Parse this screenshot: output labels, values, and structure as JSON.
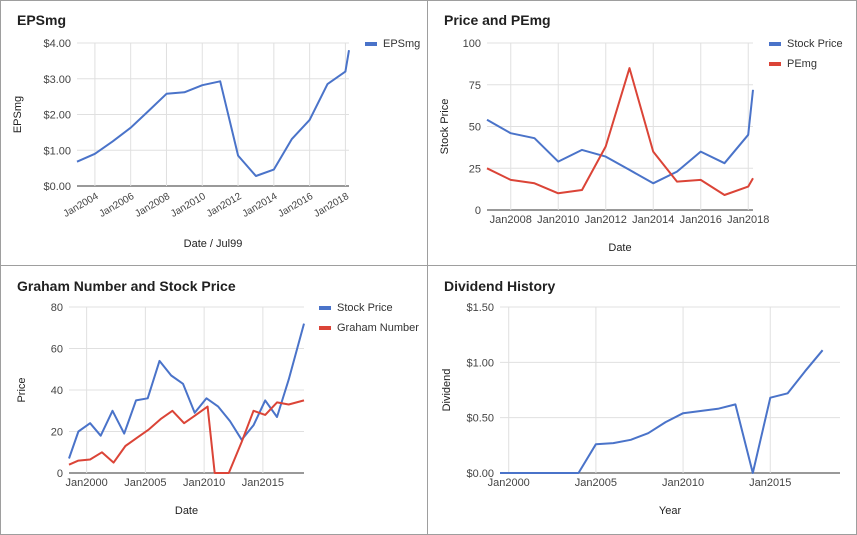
{
  "chart_data": [
    {
      "type": "line",
      "title": "EPSmg",
      "xlabel": "Date / Jul99",
      "ylabel": "EPSmg",
      "ylim": [
        0,
        4
      ],
      "yticks": [
        0,
        1,
        2,
        3,
        4
      ],
      "ytick_labels": [
        "$0.00",
        "$1.00",
        "$2.00",
        "$3.00",
        "$4.00"
      ],
      "xlim": [
        2003,
        2018.2
      ],
      "xticks": [
        2004,
        2006,
        2008,
        2010,
        2012,
        2014,
        2016,
        2018
      ],
      "xtick_labels": [
        "Jan2004",
        "Jan2006",
        "Jan2008",
        "Jan2010",
        "Jan2012",
        "Jan2014",
        "Jan2016",
        "Jan2018"
      ],
      "xtick_rotated": true,
      "grid": true,
      "legend": "right",
      "series": [
        {
          "name": "EPSmg",
          "color": "#4a73c9",
          "x": [
            2003,
            2004,
            2005,
            2006,
            2007,
            2008,
            2009,
            2010,
            2011,
            2012,
            2013,
            2014,
            2015,
            2016,
            2017,
            2018,
            2018.2
          ],
          "y": [
            0.68,
            0.9,
            1.25,
            1.63,
            2.1,
            2.58,
            2.62,
            2.82,
            2.93,
            0.85,
            0.28,
            0.46,
            1.31,
            1.85,
            2.85,
            3.2,
            3.8
          ]
        }
      ]
    },
    {
      "type": "line",
      "title": "Price and PEmg",
      "xlabel": "Date",
      "ylabel": "Stock Price",
      "ylim": [
        0,
        100
      ],
      "yticks": [
        0,
        25,
        50,
        75,
        100
      ],
      "ytick_labels": [
        "0",
        "25",
        "50",
        "75",
        "100"
      ],
      "xlim": [
        2007,
        2018.2
      ],
      "xticks": [
        2008,
        2010,
        2012,
        2014,
        2016,
        2018
      ],
      "xtick_labels": [
        "Jan2008",
        "Jan2010",
        "Jan2012",
        "Jan2014",
        "Jan2016",
        "Jan2018"
      ],
      "xtick_rotated": false,
      "grid": true,
      "legend": "right",
      "series": [
        {
          "name": "Stock Price",
          "color": "#4a73c9",
          "x": [
            2007,
            2008,
            2009,
            2010,
            2011,
            2012,
            2013,
            2014,
            2015,
            2016,
            2017,
            2018,
            2018.2
          ],
          "y": [
            54,
            46,
            43,
            29,
            36,
            32,
            24,
            16,
            23,
            35,
            28,
            45,
            72
          ]
        },
        {
          "name": "PEmg",
          "color": "#db4437",
          "x": [
            2007,
            2008,
            2009,
            2010,
            2011,
            2012,
            2013,
            2014,
            2015,
            2016,
            2017,
            2018,
            2018.2
          ],
          "y": [
            25,
            18,
            16,
            10,
            12,
            38,
            85,
            35,
            17,
            18,
            9,
            14,
            19
          ]
        }
      ]
    },
    {
      "type": "line",
      "title": "Graham Number and Stock Price",
      "xlabel": "Date",
      "ylabel": "Price",
      "ylim": [
        0,
        80
      ],
      "yticks": [
        0,
        20,
        40,
        60,
        80
      ],
      "ytick_labels": [
        "0",
        "20",
        "40",
        "60",
        "80"
      ],
      "xlim": [
        1998.5,
        2018.5
      ],
      "xticks": [
        2000,
        2005,
        2010,
        2015
      ],
      "xtick_labels": [
        "Jan2000",
        "Jan2005",
        "Jan2010",
        "Jan2015"
      ],
      "xtick_rotated": false,
      "grid": true,
      "legend": "right",
      "series": [
        {
          "name": "Stock Price",
          "color": "#4a73c9",
          "x": [
            1998.5,
            1999.3,
            2000.3,
            2001.2,
            2002.2,
            2003.2,
            2004.2,
            2005.2,
            2006.2,
            2007.2,
            2008.2,
            2009.2,
            2010.2,
            2011.2,
            2012.2,
            2013.2,
            2014.2,
            2015.2,
            2016.2,
            2017.2,
            2018.5
          ],
          "y": [
            7,
            20,
            24,
            18,
            30,
            19,
            35,
            36,
            54,
            47,
            43,
            29,
            36,
            32,
            25,
            16,
            23,
            35,
            27,
            45,
            72
          ]
        },
        {
          "name": "Graham Number",
          "color": "#db4437",
          "x": [
            1998.5,
            1999.3,
            2000.3,
            2001.3,
            2002.3,
            2003.3,
            2004.3,
            2005.3,
            2006.3,
            2007.3,
            2008.3,
            2009.3,
            2010.3,
            2010.9,
            2012.1,
            2013.2,
            2014.2,
            2015.2,
            2016.2,
            2017.2,
            2018.5
          ],
          "y": [
            4,
            6,
            6.5,
            10,
            5,
            13,
            17,
            21,
            26,
            30,
            24,
            28,
            32,
            0,
            0,
            15,
            30,
            28,
            34,
            33,
            35
          ]
        }
      ]
    },
    {
      "type": "line",
      "title": "Dividend History",
      "xlabel": "Year",
      "ylabel": "Dividend",
      "ylim": [
        0,
        1.5
      ],
      "yticks": [
        0,
        0.5,
        1.0,
        1.5
      ],
      "ytick_labels": [
        "$0.00",
        "$0.50",
        "$1.00",
        "$1.50"
      ],
      "xlim": [
        1999.5,
        2019
      ],
      "xticks": [
        2000,
        2005,
        2010,
        2015
      ],
      "xtick_labels": [
        "Jan2000",
        "Jan2005",
        "Jan2010",
        "Jan2015"
      ],
      "xtick_rotated": false,
      "grid": true,
      "legend": "none",
      "series": [
        {
          "name": "",
          "color": "#4a73c9",
          "x": [
            1999.5,
            2000,
            2001,
            2002,
            2003,
            2004,
            2005,
            2006,
            2007,
            2008,
            2009,
            2010,
            2011,
            2012,
            2013,
            2014,
            2015,
            2016,
            2017,
            2018
          ],
          "y": [
            0,
            0,
            0,
            0,
            0,
            0,
            0.26,
            0.27,
            0.3,
            0.36,
            0.46,
            0.54,
            0.56,
            0.58,
            0.62,
            0,
            0.68,
            0.72,
            0.92,
            1.11
          ]
        }
      ]
    }
  ]
}
